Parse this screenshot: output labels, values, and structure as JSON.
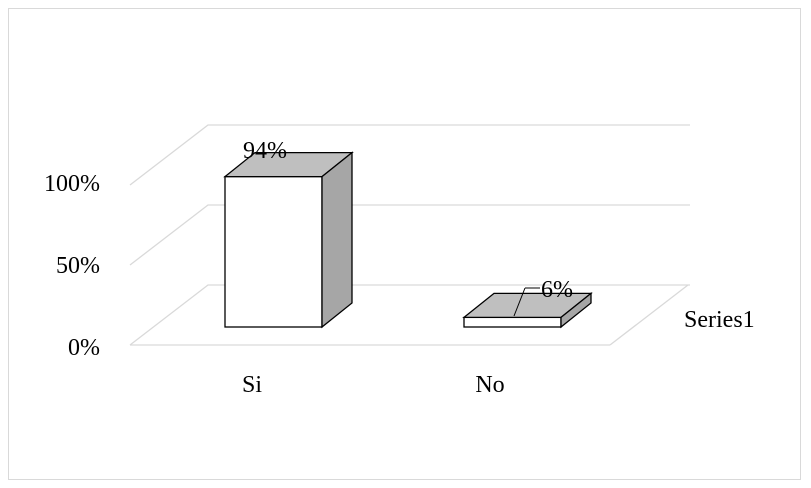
{
  "chart_data": {
    "type": "bar",
    "style": "3d-column",
    "categories": [
      "Si",
      "No"
    ],
    "series": [
      {
        "name": "Series1",
        "values": [
          94,
          6
        ]
      }
    ],
    "data_labels": [
      "94%",
      "6%"
    ],
    "y_ticks": [
      "0%",
      "50%",
      "100%"
    ],
    "ylim": [
      0,
      100
    ],
    "grid": true,
    "legend_position": "right",
    "colors": {
      "front": "#ffffff",
      "top": "#bfbfbf",
      "side": "#a6a6a6",
      "edge": "#000000",
      "grid": "#d9d9d9"
    }
  }
}
